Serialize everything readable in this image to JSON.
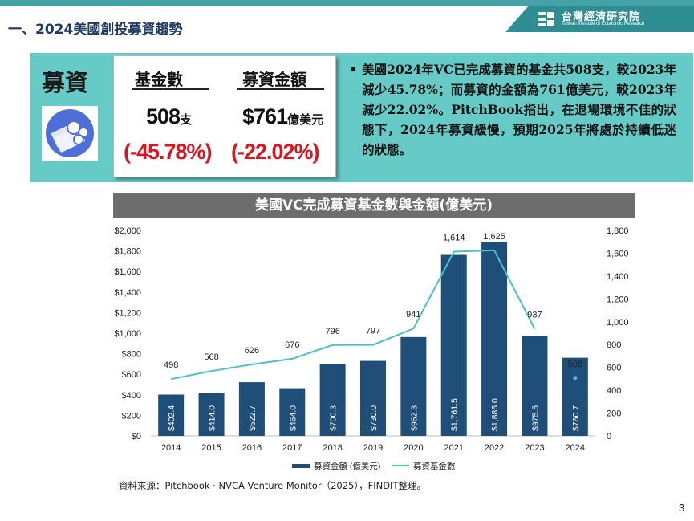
{
  "header": {
    "title": "一、2024美國創投募資趨勢",
    "brand_cn": "台灣經濟研究院",
    "brand_en": "Taiwan Institute of Economic Research"
  },
  "summary_panel": {
    "label": "募資",
    "metrics": {
      "fund_count_label": "基金數",
      "fund_amount_label": "募資金額",
      "fund_count_value": "508",
      "fund_count_unit": "支",
      "fund_amount_value": "$761",
      "fund_amount_unit": "億美元",
      "fund_count_change": "(-45.78%)",
      "fund_amount_change": "(-22.02%)"
    },
    "bullet_text": "美國2024年VC已完成募資的基金共508支，較2023年減少45.78%；而募資的金額為761億美元，較2023年減少22.02%。PitchBook指出，在退場環境不佳的狀態下，2024年募資緩慢，預期2025年將處於持續低迷的狀態。"
  },
  "chart_data": {
    "type": "bar",
    "title": "美國VC完成募資基金數與金額(億美元)",
    "categories": [
      "2014",
      "2015",
      "2016",
      "2017",
      "2018",
      "2019",
      "2020",
      "2021",
      "2022",
      "2023",
      "2024"
    ],
    "series": [
      {
        "name": "募資金額 (億美元)",
        "type": "bar",
        "axis": "left",
        "values": [
          402.4,
          414.0,
          522.7,
          464.0,
          700.3,
          730.0,
          962.3,
          1761.5,
          1885.0,
          975.5,
          760.7
        ],
        "labels": [
          "$402.4",
          "$414.0",
          "$522.7",
          "$464.0",
          "$700.3",
          "$730.0",
          "$962.3",
          "$1,761.5",
          "$1,885.0",
          "$975.5",
          "$760.7"
        ]
      },
      {
        "name": "募資基金數",
        "type": "line",
        "axis": "right",
        "values": [
          498,
          568,
          626,
          676,
          796,
          797,
          941,
          1614,
          1625,
          937,
          508
        ],
        "labels": [
          "498",
          "568",
          "626",
          "676",
          "796",
          "797",
          "941",
          "1,614",
          "1,625",
          "937",
          "508"
        ]
      }
    ],
    "y_left": {
      "range": [
        0,
        2000
      ],
      "ticks": [
        "$0",
        "$200",
        "$400",
        "$600",
        "$800",
        "$1,000",
        "$1,200",
        "$1,400",
        "$1,600",
        "$1,800",
        "$2,000"
      ]
    },
    "y_right": {
      "range": [
        0,
        1800
      ],
      "ticks": [
        "0",
        "200",
        "400",
        "600",
        "800",
        "1,000",
        "1,200",
        "1,400",
        "1,600",
        "1,800"
      ]
    },
    "grid": false,
    "legend": "bottom",
    "colors": {
      "bar": "#1f4e79",
      "line": "#4bc0c8"
    }
  },
  "source": "資料來源：Pitchbook · NVCA Venture Monitor（2025），FINDIT整理。",
  "page_number": "3"
}
